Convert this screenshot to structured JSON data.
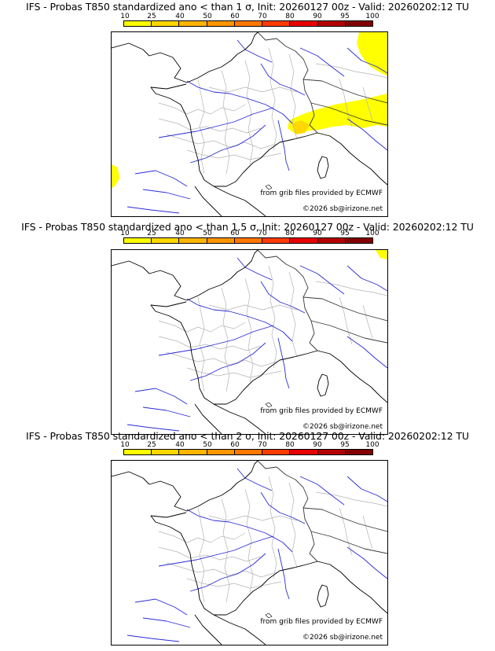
{
  "legend": {
    "ticks": [
      "10",
      "25",
      "40",
      "50",
      "60",
      "70",
      "80",
      "90",
      "95",
      "100"
    ],
    "colors": [
      "#ffff00",
      "#ffd700",
      "#ffb400",
      "#ff9600",
      "#ff7800",
      "#ff3c00",
      "#e60000",
      "#b40000",
      "#820000"
    ]
  },
  "credit_source": "from grib files provided by ECMWF",
  "credit_copyright": "©2026 sb@irizone.net",
  "panels": [
    {
      "title": "IFS - Probas T850  standardized ano < than 1 σ, Init: 20260127 00z - Valid: 20260202:12 TU",
      "anomaly": "yes"
    },
    {
      "title": "IFS - Probas T850  standardized ano < than 1.5 σ, Init: 20260127 00z - Valid: 20260202:12 TU",
      "anomaly": "small"
    },
    {
      "title": "IFS - Probas T850  standardized ano < than 2 σ, Init: 20260127 00z - Valid: 20260202:12 TU",
      "anomaly": "none"
    }
  ]
}
